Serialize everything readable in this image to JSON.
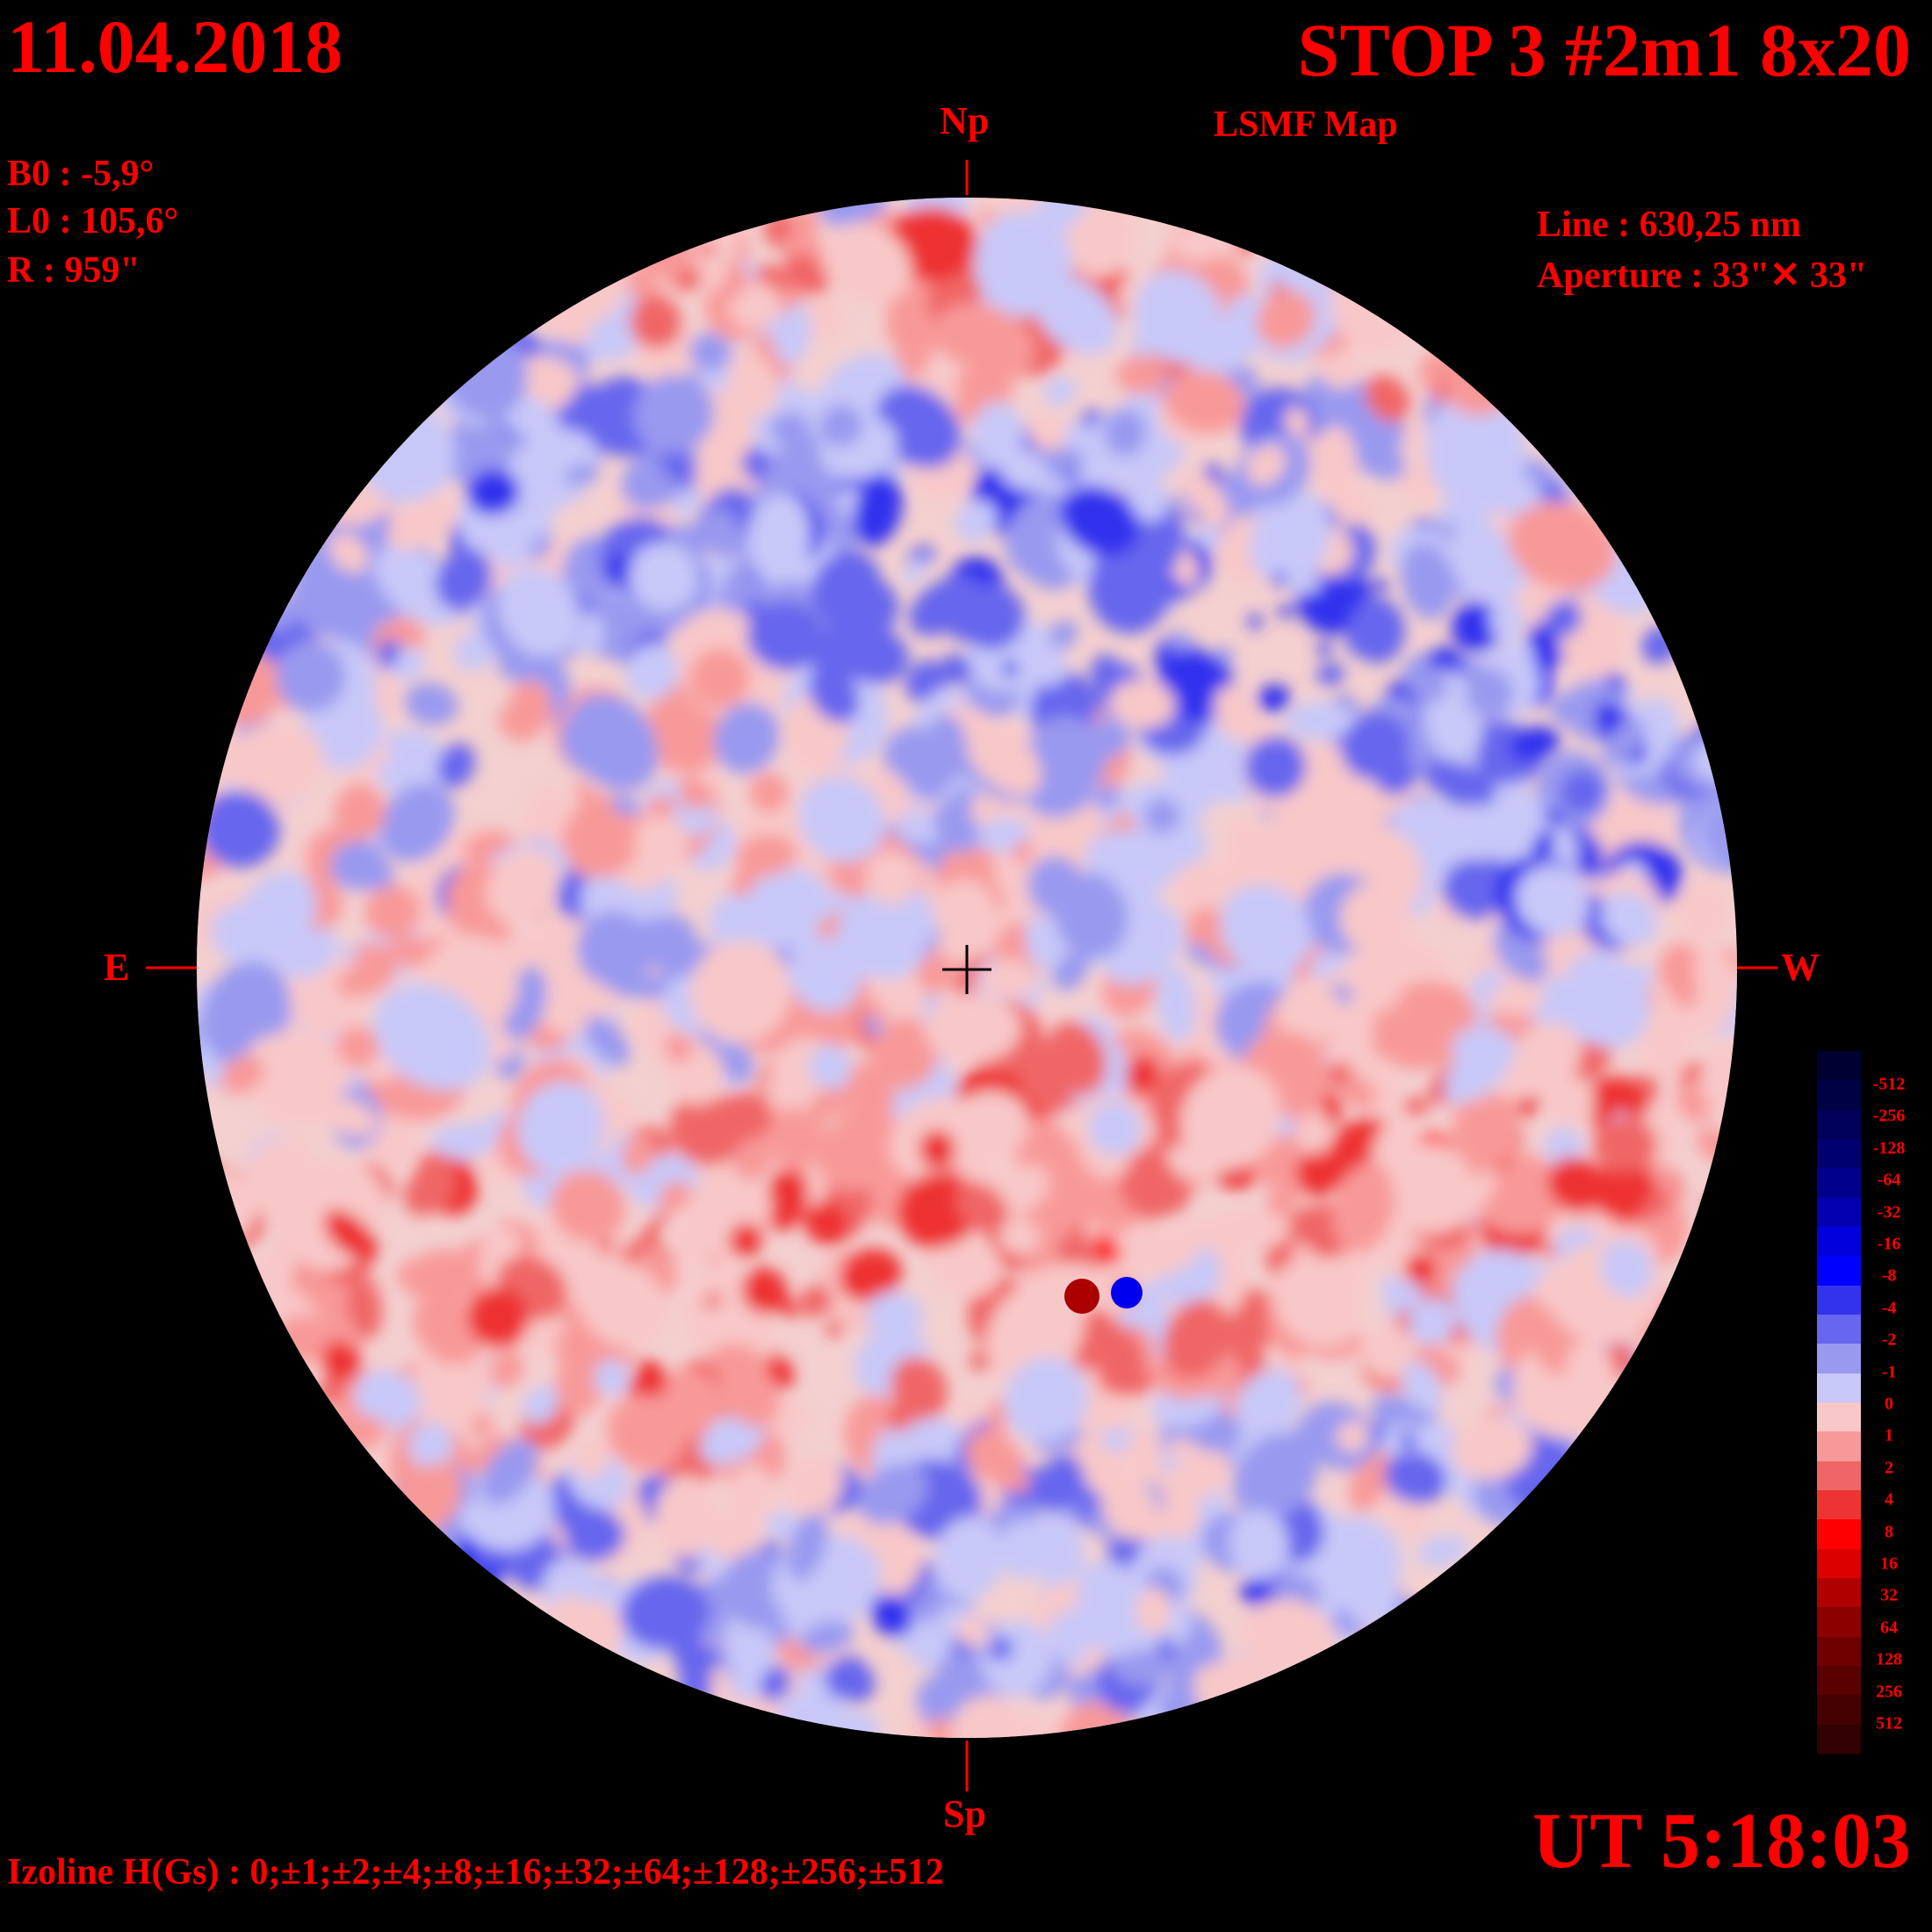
{
  "header": {
    "date": "11.04.2018",
    "title": "STOP 3 #2m1 8x20",
    "subtitle": "LSMF  Map"
  },
  "ephemeris": {
    "b0": "B0 : -5,9°",
    "l0": "L0 : 105,6°",
    "radius": "R  : 959\""
  },
  "instrument": {
    "line": "Line :  630,25 nm",
    "aperture": "Aperture : 33\"✕ 33\""
  },
  "directions": {
    "north": "Np",
    "south": "Sp",
    "east": "E",
    "west": "W"
  },
  "time": "UT 5:18:03",
  "izoline": "Izoline H(Gs) : 0;±1;±2;±4;±8;±16;±32;±64;±128;±256;±512",
  "colorbar": {
    "labels": [
      "-512",
      "-256",
      "-128",
      "-64",
      "-32",
      "-16",
      "-8",
      "-4",
      "-2",
      "-1",
      "0",
      "1",
      "2",
      "4",
      "8",
      "16",
      "32",
      "64",
      "128",
      "256",
      "512"
    ],
    "colors": [
      "#000033",
      "#000044",
      "#00005a",
      "#000070",
      "#00008c",
      "#0000b0",
      "#0000dd",
      "#0000ff",
      "#3333ee",
      "#6666ee",
      "#9999f0",
      "#c8c8f8",
      "#f8c8c8",
      "#f89999",
      "#f06666",
      "#ee3333",
      "#ff0000",
      "#dd0000",
      "#b00000",
      "#8c0000",
      "#700000",
      "#5a0000",
      "#440000",
      "#330000"
    ]
  },
  "legend_colors": {
    "background": "#000000",
    "text": "#ff0000",
    "isoline": "#ffffff"
  }
}
